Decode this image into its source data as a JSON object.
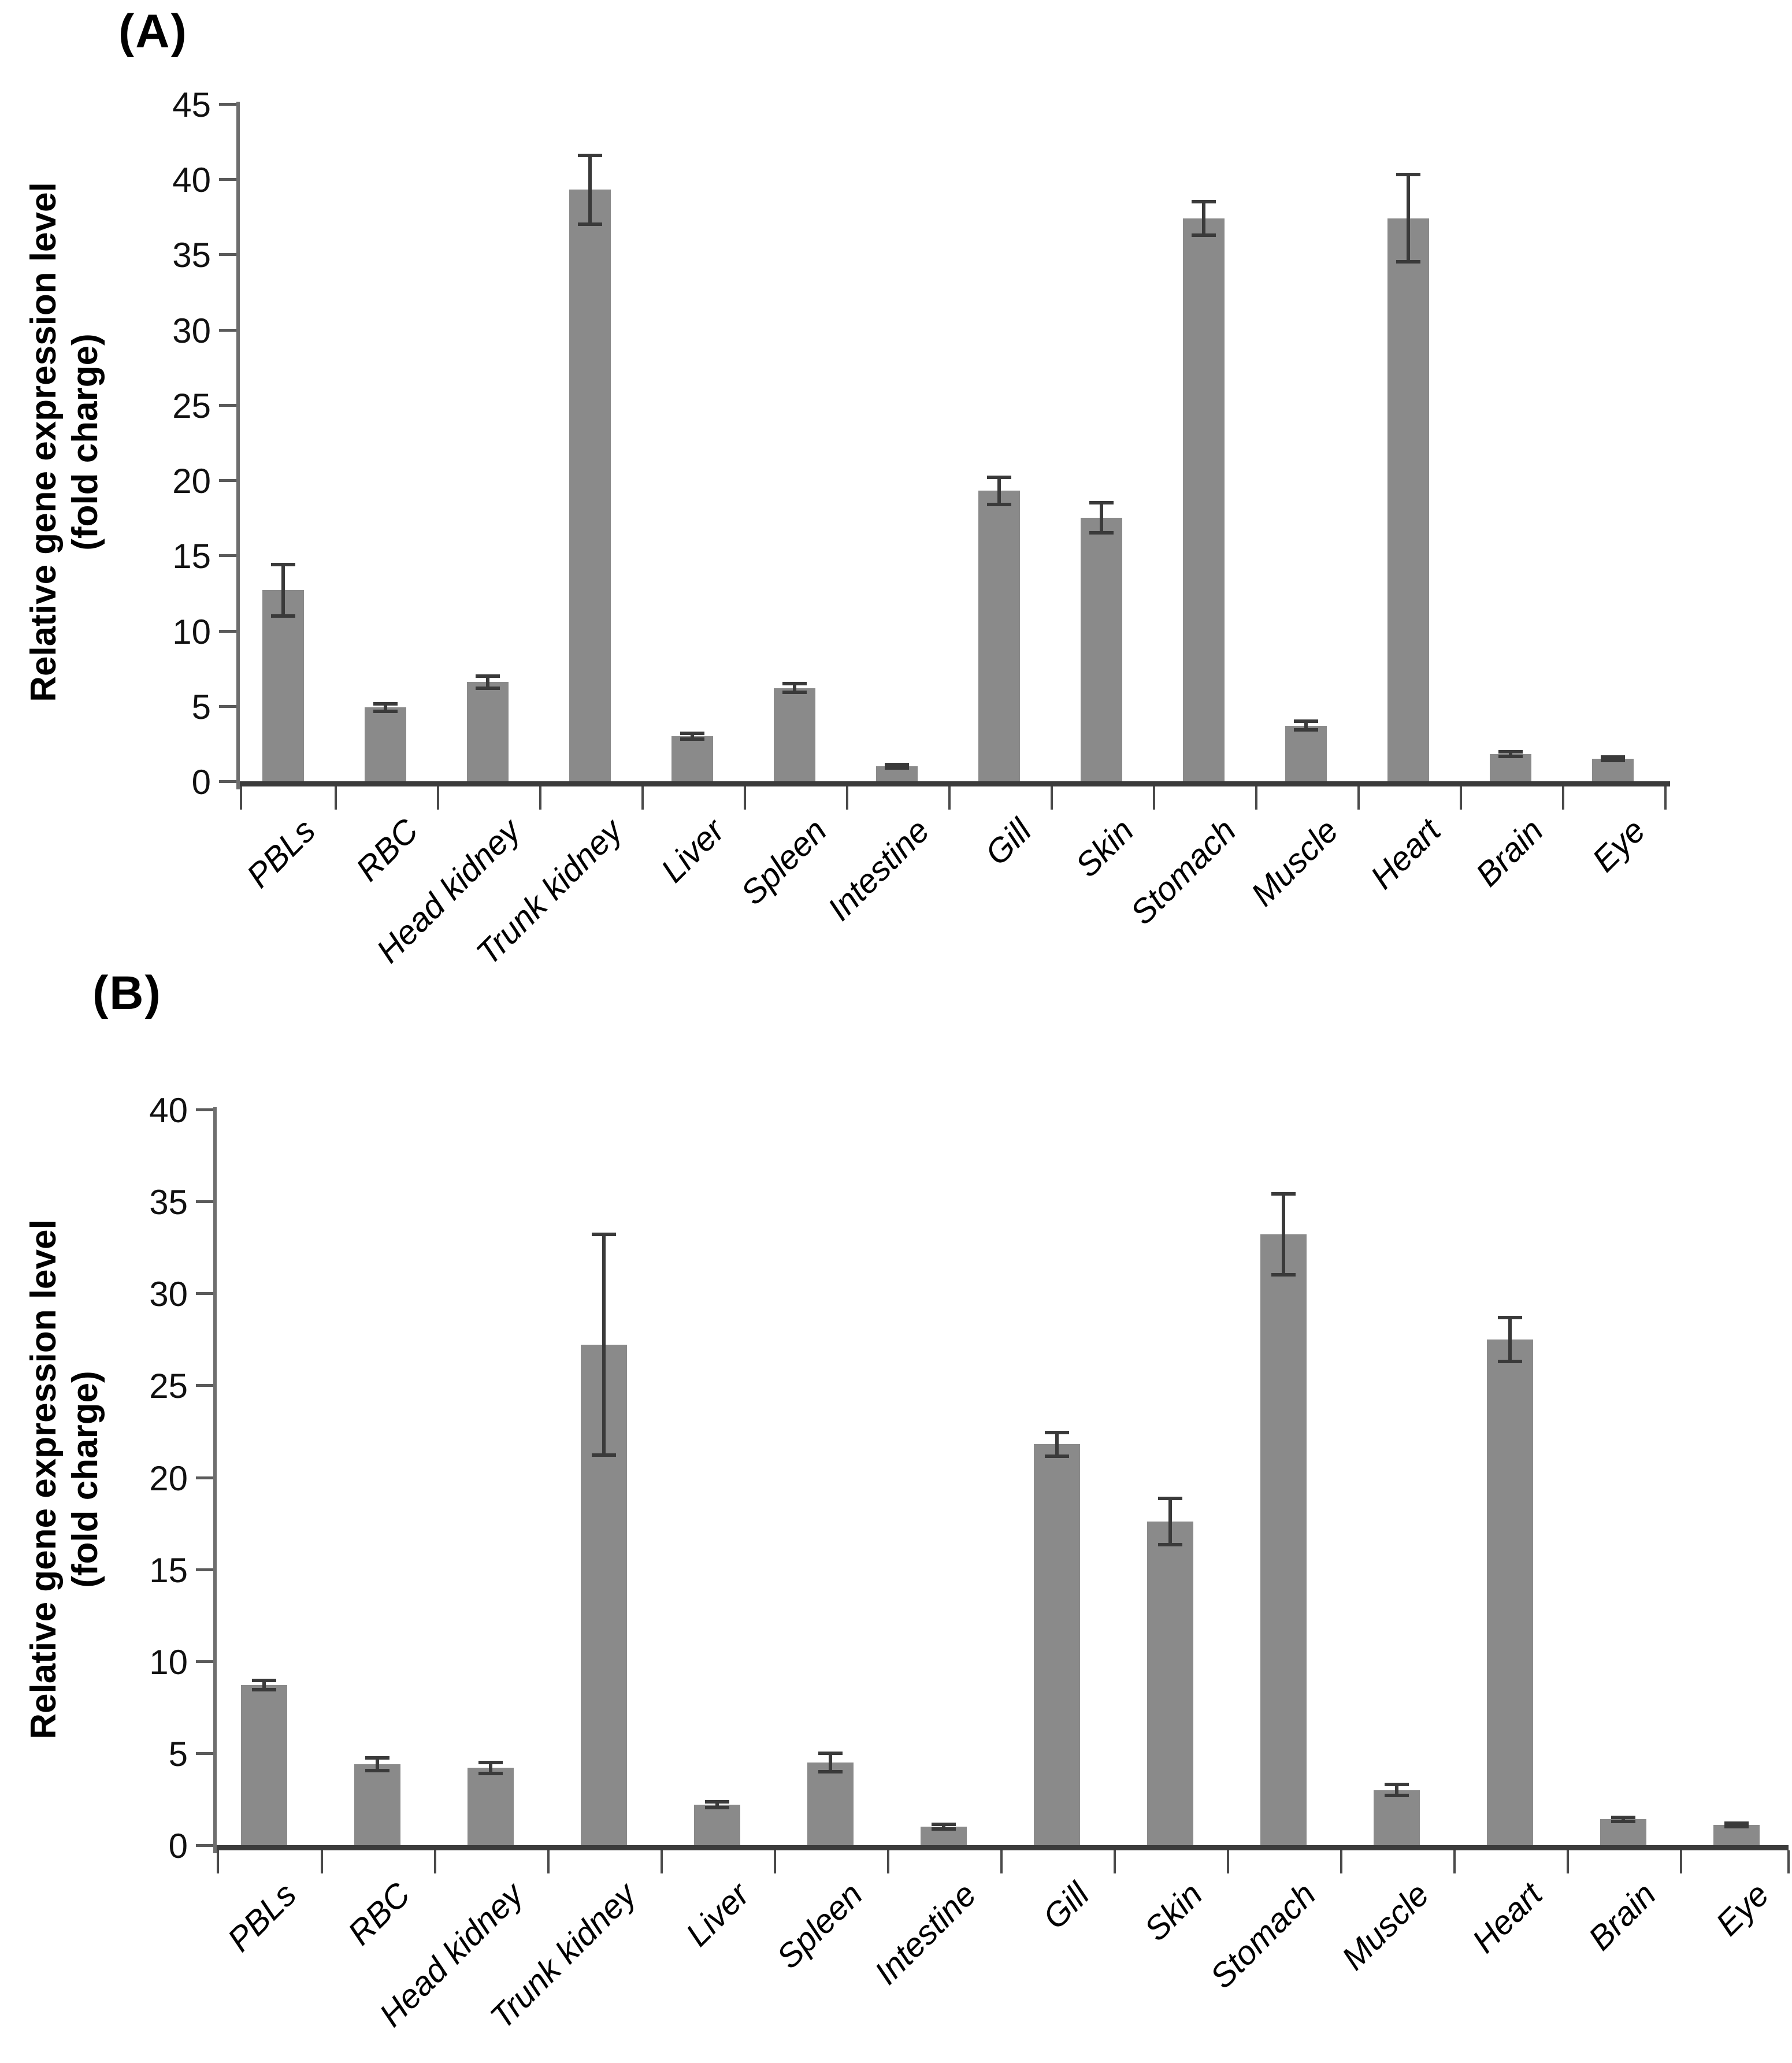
{
  "colors": {
    "bar": "#8a8a8a",
    "error_bar": "#3a3a3a",
    "axis": "#3b3b3b",
    "text": "#000000"
  },
  "chart_data": [
    {
      "type": "bar",
      "title": "(A)",
      "ylabel_line1": "Relative gene expression level",
      "ylabel_line2": "(fold charge)",
      "xlabel": "",
      "ylim": [
        0,
        45
      ],
      "ytick_step": 5,
      "ytick_labels": [
        "0",
        "5",
        "10",
        "15",
        "20",
        "25",
        "30",
        "35",
        "40",
        "45"
      ],
      "grid": false,
      "legend": "none",
      "bar_color": "#8a8a8a",
      "error_color": "#3a3a3a",
      "categories": [
        "PBLs",
        "RBC",
        "Head kidney",
        "Trunk kidney",
        "Liver",
        "Spleen",
        "Intestine",
        "Gill",
        "Skin",
        "Stomach",
        "Muscle",
        "Heart",
        "Brain",
        "Eye"
      ],
      "values": [
        12.7,
        4.9,
        6.6,
        39.3,
        3.0,
        6.2,
        1.0,
        19.3,
        17.5,
        37.4,
        3.7,
        37.4,
        1.8,
        1.5
      ],
      "errors": [
        1.7,
        0.25,
        0.4,
        2.3,
        0.2,
        0.3,
        0.1,
        0.9,
        1.0,
        1.1,
        0.3,
        2.9,
        0.15,
        0.12
      ]
    },
    {
      "type": "bar",
      "title": "(B)",
      "ylabel_line1": "Relative gene expression level",
      "ylabel_line2": "(fold charge)",
      "xlabel": "",
      "ylim": [
        0,
        40
      ],
      "ytick_step": 5,
      "ytick_labels": [
        "0",
        "5",
        "10",
        "15",
        "20",
        "25",
        "30",
        "35",
        "40"
      ],
      "grid": false,
      "legend": "none",
      "bar_color": "#8a8a8a",
      "error_color": "#3a3a3a",
      "categories": [
        "PBLs",
        "RBC",
        "Head kidney",
        "Trunk kidney",
        "Liver",
        "Spleen",
        "Intestine",
        "Gill",
        "Skin",
        "Stomach",
        "Muscle",
        "Heart",
        "Brain",
        "Eye"
      ],
      "values": [
        8.7,
        4.4,
        4.2,
        27.2,
        2.2,
        4.5,
        1.0,
        21.8,
        17.6,
        33.2,
        3.0,
        27.5,
        1.4,
        1.1
      ],
      "errors": [
        0.25,
        0.35,
        0.3,
        6.0,
        0.15,
        0.5,
        0.12,
        0.65,
        1.25,
        2.2,
        0.3,
        1.2,
        0.1,
        0.08
      ]
    }
  ]
}
